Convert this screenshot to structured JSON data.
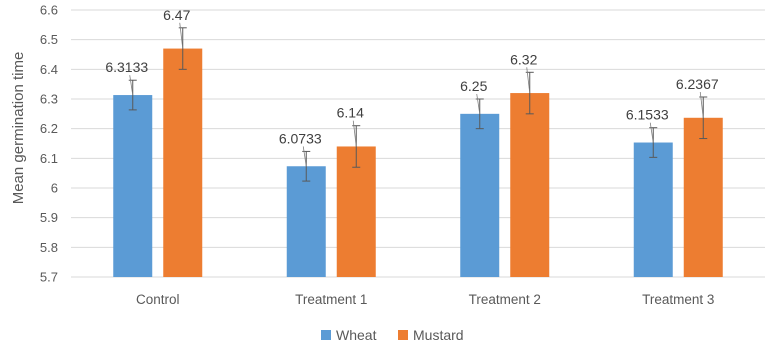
{
  "chart_data": {
    "type": "bar",
    "ylabel": "Mean germination time",
    "xlabel": "",
    "ylim": [
      5.7,
      6.6
    ],
    "yticks": [
      "5.7",
      "5.8",
      "5.9",
      "6",
      "6.1",
      "6.2",
      "6.3",
      "6.4",
      "6.5",
      "6.6"
    ],
    "categories": [
      "Control",
      "Treatment 1",
      "Treatment 2",
      "Treatment 3"
    ],
    "series": [
      {
        "name": "Wheat",
        "color": "#5b9bd5",
        "values": [
          6.3133,
          6.0733,
          6.25,
          6.1533
        ],
        "labels": [
          "6.3133",
          "6.0733",
          "6.25",
          "6.1533"
        ],
        "error": [
          0.05,
          0.05,
          0.05,
          0.05
        ]
      },
      {
        "name": "Mustard",
        "color": "#ed7d31",
        "values": [
          6.47,
          6.14,
          6.32,
          6.2367
        ],
        "labels": [
          "6.47",
          "6.14",
          "6.32",
          "6.2367"
        ],
        "error": [
          0.07,
          0.07,
          0.07,
          0.07
        ]
      }
    ],
    "grid": true,
    "legend": "bottom"
  }
}
